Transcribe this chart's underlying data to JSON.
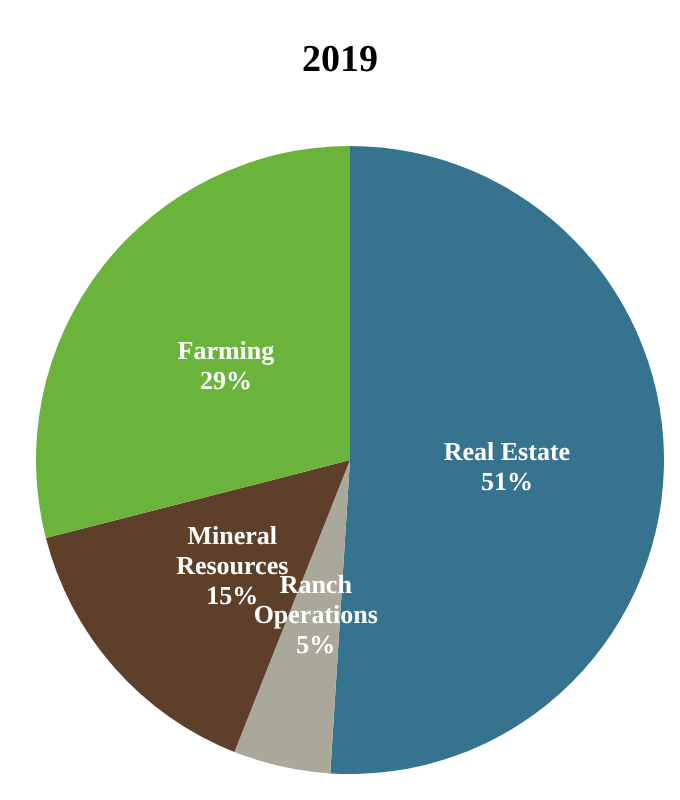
{
  "chart_data": {
    "type": "pie",
    "title": "2019",
    "categories": [
      "Real Estate",
      "Ranch Operations",
      "Mineral Resources",
      "Farming"
    ],
    "values": [
      51,
      5,
      15,
      29
    ],
    "value_labels": [
      "51%",
      "5%",
      "15%",
      "29%"
    ],
    "colors": [
      "#35738f",
      "#a9a89b",
      "#5e3f29",
      "#6bb43b"
    ]
  }
}
